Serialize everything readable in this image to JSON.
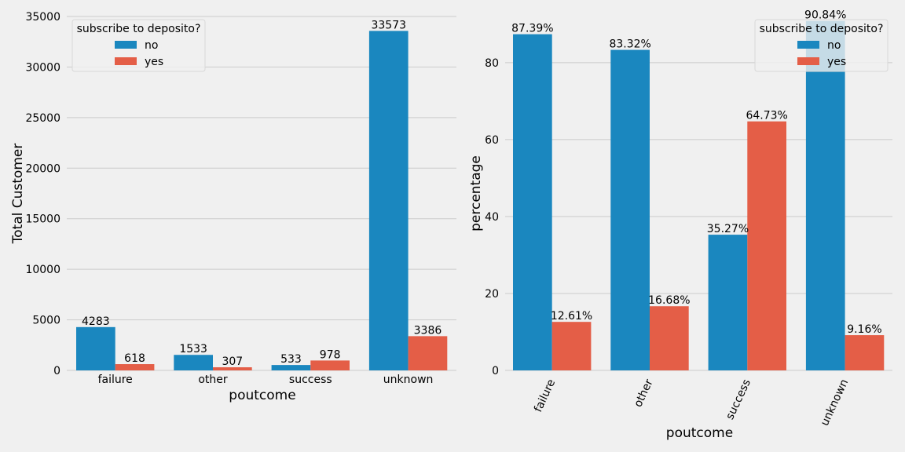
{
  "colors": {
    "no": "#1a87bf",
    "yes": "#e45e47",
    "background": "#f0f0f0",
    "grid": "#cbcbcb",
    "text": "#000000"
  },
  "chart_data": [
    {
      "type": "bar",
      "categories": [
        "failure",
        "other",
        "success",
        "unknown"
      ],
      "series": [
        {
          "name": "no",
          "values": [
            4283,
            1533,
            533,
            33573
          ],
          "labels": [
            "4283",
            "1533",
            "533",
            "33573"
          ]
        },
        {
          "name": "yes",
          "values": [
            618,
            307,
            978,
            3386
          ],
          "labels": [
            "618",
            "307",
            "978",
            "3386"
          ]
        }
      ],
      "xlabel": "poutcome",
      "ylabel": "Total Customer",
      "ylim": [
        0,
        35000
      ],
      "yticks": [
        0,
        5000,
        10000,
        15000,
        20000,
        25000,
        30000,
        35000
      ],
      "legend": {
        "title": "subscribe to deposito?",
        "placement": "top-left"
      },
      "grid": true
    },
    {
      "type": "bar",
      "categories": [
        "failure",
        "other",
        "success",
        "unknown"
      ],
      "series": [
        {
          "name": "no",
          "values": [
            87.39,
            83.32,
            35.27,
            90.84
          ],
          "labels": [
            "87.39%",
            "83.32%",
            "35.27%",
            "90.84%"
          ]
        },
        {
          "name": "yes",
          "values": [
            12.61,
            16.68,
            64.73,
            9.16
          ],
          "labels": [
            "12.61%",
            "16.68%",
            "64.73%",
            "9.16%"
          ]
        }
      ],
      "xlabel": "poutcome",
      "ylabel": "percentage",
      "ylim": [
        0,
        92
      ],
      "yticks": [
        0,
        20,
        40,
        60,
        80
      ],
      "xtick_rotation": -65,
      "legend": {
        "title": "subscribe to deposito?",
        "placement": "top-right"
      },
      "grid": true
    }
  ]
}
